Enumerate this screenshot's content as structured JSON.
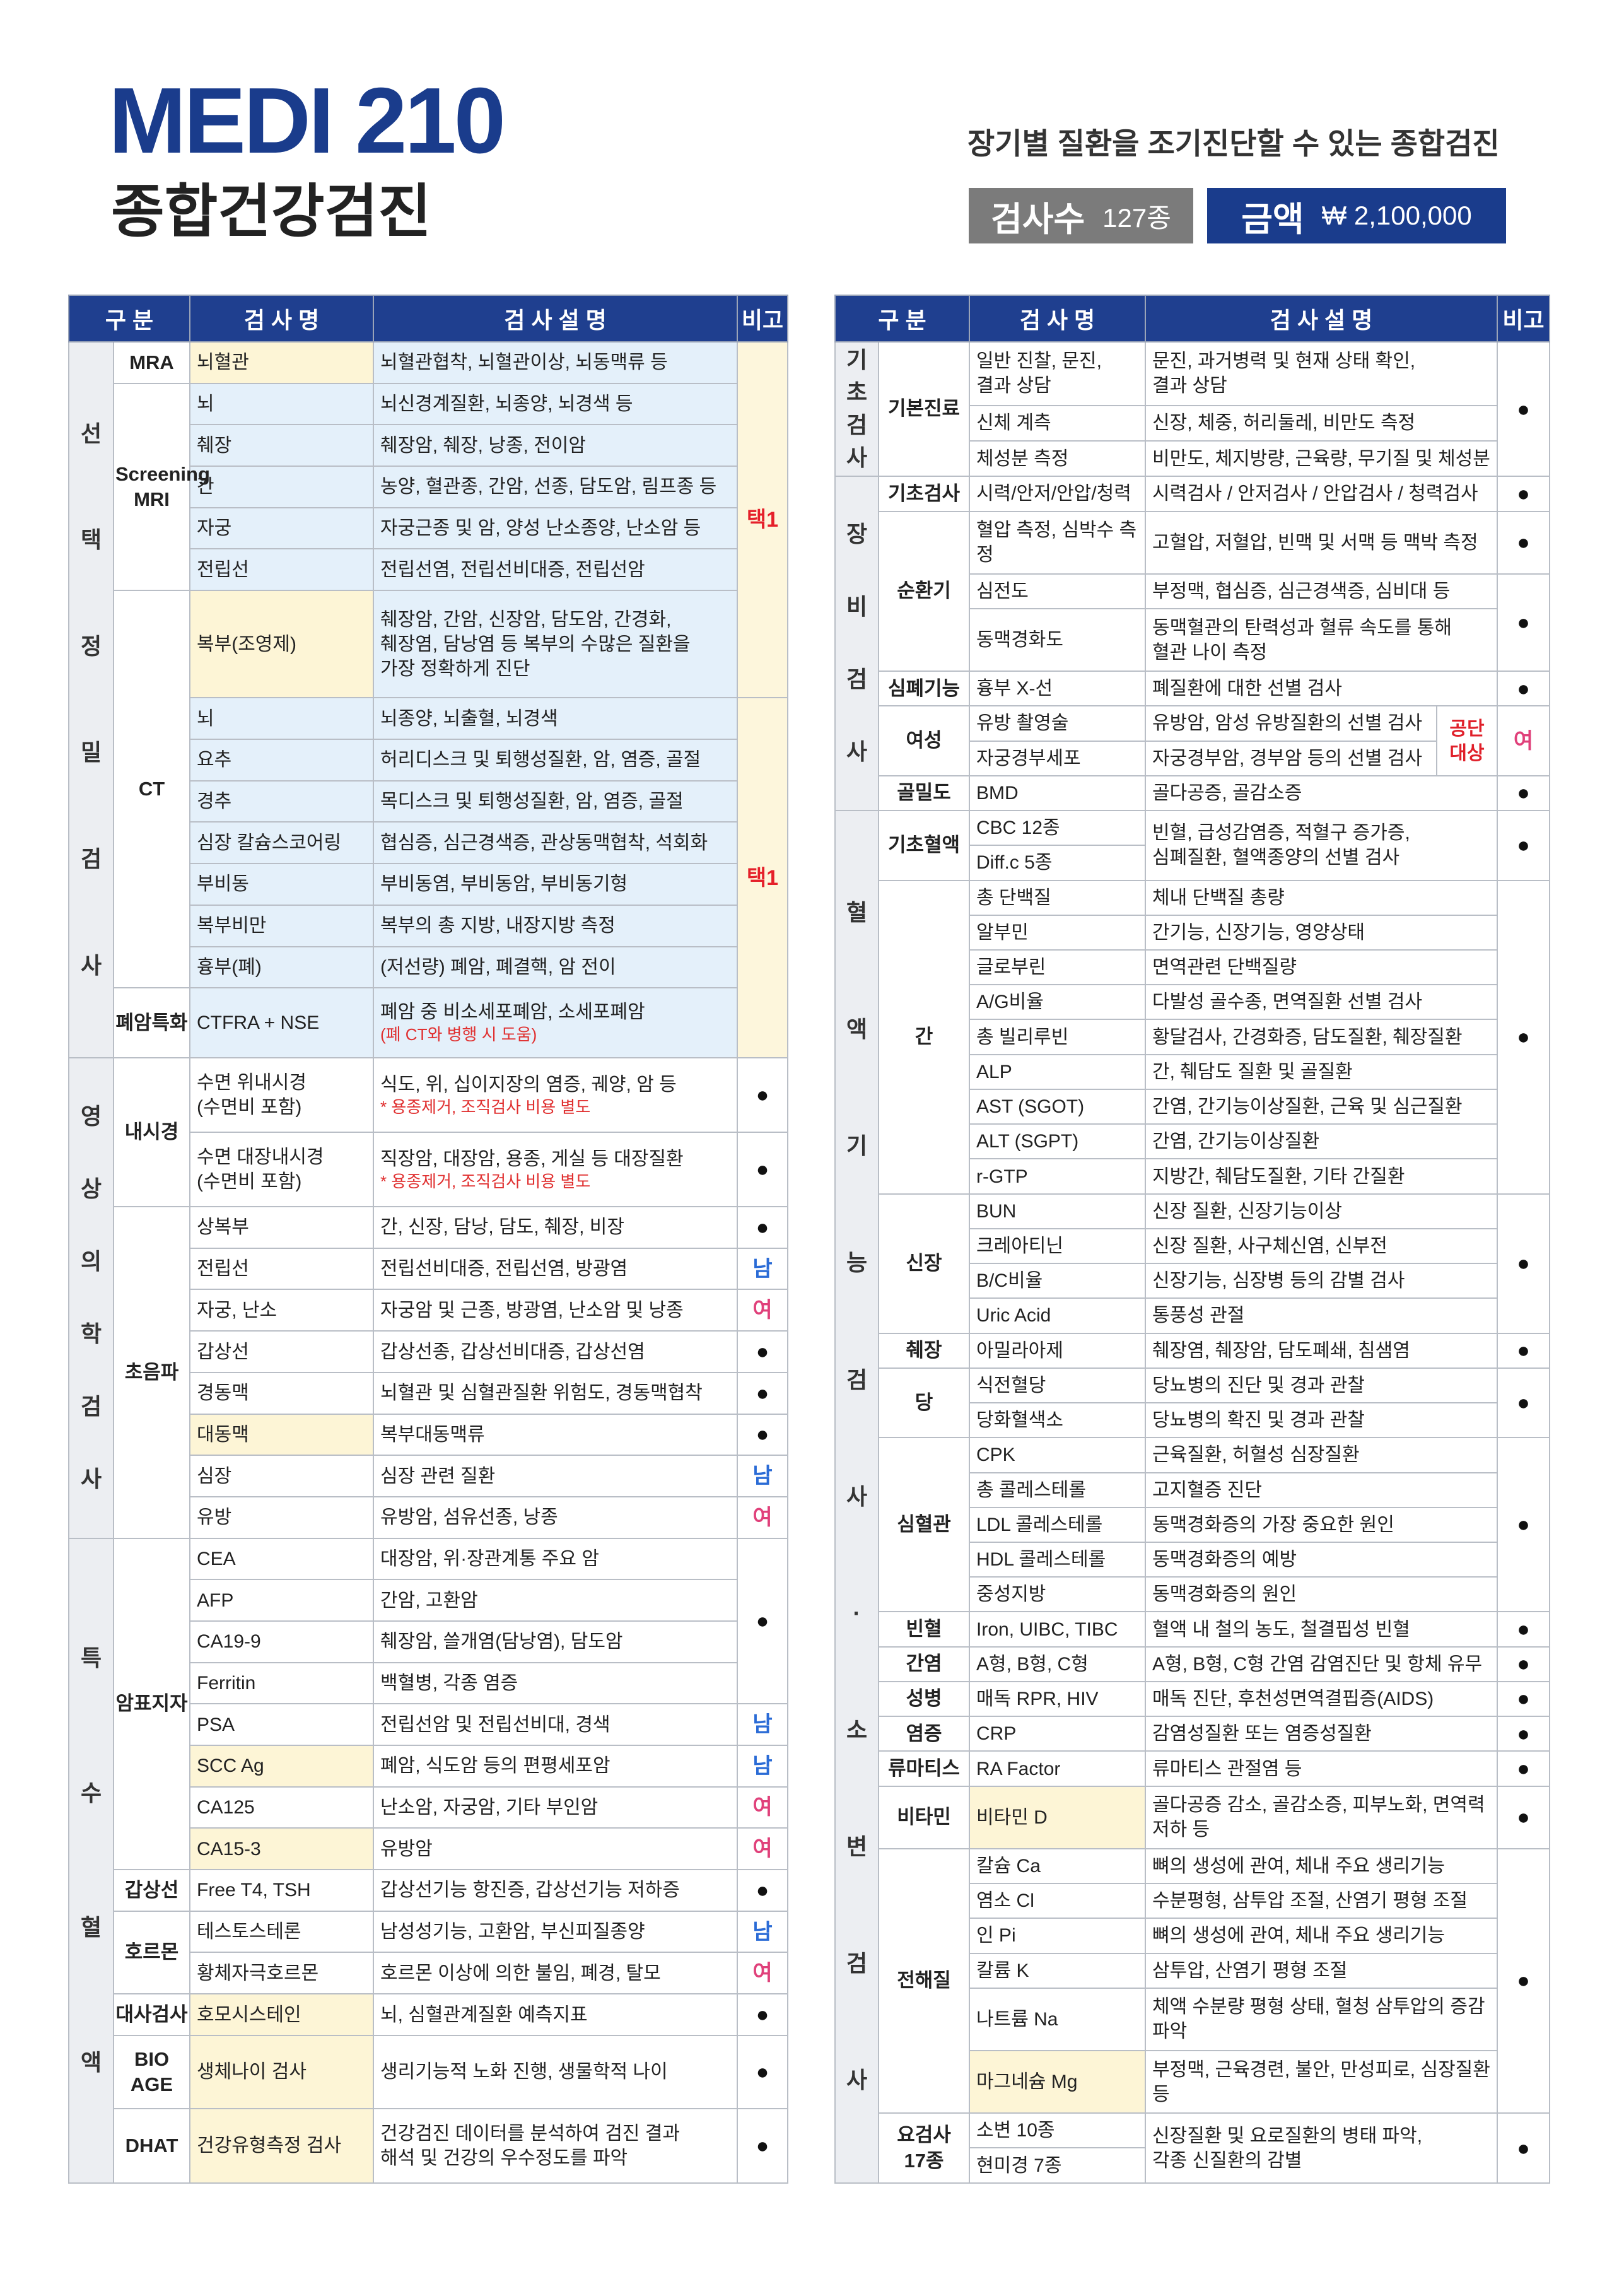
{
  "header": {
    "title": "MEDI 210",
    "subtitle": "종합건강검진",
    "tagline": "장기별 질환을 조기진단할 수 있는 종합검진",
    "count_label": "검사수",
    "count_value": "127종",
    "price_label": "금액",
    "price_value": "₩ 2,100,000"
  },
  "left_table": {
    "headers": [
      "구 분",
      "검 사 명",
      "검 사 설 명",
      "비고"
    ],
    "sections": [
      {
        "label": "선택정밀검사",
        "color": "#e4f0fa",
        "groups": [
          {
            "label": "MRA",
            "items": [
              {
                "name": "뇌혈관",
                "highlight": "#fdf5d6",
                "desc": "뇌혈관협착, 뇌혈관이상, 뇌동맥류 등",
                "note": "택1",
                "note_color": "#e5202a",
                "note_background": "#fdf6dc"
              }
            ]
          },
          {
            "label": "Screening\nMRI",
            "items": [
              {
                "name": "뇌",
                "desc": "뇌신경계질환, 뇌종양, 뇌경색 등"
              },
              {
                "name": "췌장",
                "desc": "췌장암, 췌장, 낭종, 전이암"
              },
              {
                "name": "간",
                "desc": "농양, 혈관종, 간암, 선종, 담도암, 림프종 등"
              },
              {
                "name": "자궁",
                "desc": "자궁근종 및 암, 양성 난소종양, 난소암 등"
              },
              {
                "name": "전립선",
                "desc": "전립선염, 전립선비대증, 전립선암"
              }
            ]
          },
          {
            "label": "CT",
            "items": [
              {
                "name": "복부(조영제)",
                "highlight": "#fdf5d6",
                "desc": "췌장암, 간암, 신장암, 담도암, 간경화,\n췌장염, 담낭염 등 복부의 수많은 질환을\n가장 정확하게 진단"
              },
              {
                "name": "뇌",
                "desc": "뇌종양, 뇌출혈, 뇌경색",
                "note": "택1",
                "note_color": "#e5202a",
                "note_background": "#fdf6dc"
              },
              {
                "name": "요추",
                "desc": "허리디스크 및 퇴행성질환, 암, 염증, 골절"
              },
              {
                "name": "경추",
                "desc": "목디스크 및 퇴행성질환, 암, 염증, 골절"
              },
              {
                "name": "심장 칼슘스코어링",
                "desc": "협심증, 심근경색증, 관상동맥협착, 석회화"
              },
              {
                "name": "부비동",
                "desc": "부비동염, 부비동암, 부비동기형"
              },
              {
                "name": "복부비만",
                "desc": "복부의 총 지방, 내장지방 측정"
              },
              {
                "name": "흉부(폐)",
                "desc": "(저선량) 폐암, 폐결핵, 암 전이"
              }
            ]
          },
          {
            "label": "폐암특화",
            "items": [
              {
                "name": "CTFRA + NSE",
                "desc": "폐암 중 비소세포폐암, 소세포폐암",
                "desc_note": "(폐 CT와 병행 시 도움)"
              }
            ]
          }
        ]
      },
      {
        "label": "영상의학검사",
        "groups": [
          {
            "label": "내시경",
            "items": [
              {
                "name": "수면 위내시경\n(수면비 포함)",
                "desc": "식도, 위, 십이지장의 염증, 궤양, 암 등",
                "desc_note": "* 용종제거, 조직검사 비용 별도",
                "note": "●"
              },
              {
                "name": "수면 대장내시경\n(수면비 포함)",
                "desc": "직장암, 대장암, 용종, 게실 등 대장질환",
                "desc_note": "* 용종제거, 조직검사 비용 별도",
                "note": "●"
              }
            ]
          },
          {
            "label": "초음파",
            "items": [
              {
                "name": "상복부",
                "desc": "간, 신장, 담낭, 담도, 췌장, 비장",
                "note": "●"
              },
              {
                "name": "전립선",
                "desc": "전립선비대증, 전립선염, 방광염",
                "note": "남",
                "note_color": "#2a6bd6"
              },
              {
                "name": "자궁, 난소",
                "desc": "자궁암 및 근종, 방광염, 난소암 및 낭종",
                "note": "여",
                "note_color": "#e0407a"
              },
              {
                "name": "갑상선",
                "desc": "갑상선종, 갑상선비대증, 갑상선염",
                "note": "●"
              },
              {
                "name": "경동맥",
                "desc": "뇌혈관 및 심혈관질환 위험도, 경동맥협착",
                "note": "●"
              },
              {
                "name": "대동맥",
                "highlight": "#fdf5d6",
                "desc": "복부대동맥류",
                "note": "●"
              },
              {
                "name": "심장",
                "desc": "심장 관련 질환",
                "note": "남",
                "note_color": "#2a6bd6"
              },
              {
                "name": "유방",
                "desc": "유방암, 섬유선종, 낭종",
                "note": "여",
                "note_color": "#e0407a"
              }
            ]
          }
        ]
      },
      {
        "label": "특수혈액",
        "groups": [
          {
            "label": "암표지자",
            "items": [
              {
                "name": "CEA",
                "desc": "대장암, 위·장관계통 주요 암",
                "note": "●"
              },
              {
                "name": "AFP",
                "desc": "간암, 고환암"
              },
              {
                "name": "CA19-9",
                "desc": "췌장암, 쓸개염(담낭염), 담도암"
              },
              {
                "name": "Ferritin",
                "desc": "백혈병, 각종 염증"
              },
              {
                "name": "PSA",
                "desc": "전립선암 및 전립선비대, 경색",
                "note": "남",
                "note_color": "#2a6bd6"
              },
              {
                "name": "SCC Ag",
                "highlight": "#fdf5d6",
                "desc": "폐암, 식도암 등의 편평세포암",
                "note": "남",
                "note_color": "#2a6bd6"
              },
              {
                "name": "CA125",
                "desc": "난소암, 자궁암, 기타 부인암",
                "note": "여",
                "note_color": "#e0407a"
              },
              {
                "name": "CA15-3",
                "highlight": "#fdf5d6",
                "desc": "유방암",
                "note": "여",
                "note_color": "#e0407a"
              }
            ]
          },
          {
            "label": "갑상선",
            "items": [
              {
                "name": "Free T4, TSH",
                "desc": "갑상선기능 항진증, 갑상선기능 저하증",
                "note": "●"
              }
            ]
          },
          {
            "label": "호르몬",
            "items": [
              {
                "name": "테스토스테론",
                "desc": "남성성기능, 고환암, 부신피질종양",
                "note": "남",
                "note_color": "#2a6bd6"
              },
              {
                "name": "황체자극호르몬",
                "desc": "호르몬 이상에 의한 불임, 폐경, 탈모",
                "note": "여",
                "note_color": "#e0407a"
              }
            ]
          },
          {
            "label": "대사검사",
            "items": [
              {
                "name": "호모시스테인",
                "highlight": "#fdf5d6",
                "desc": "뇌, 심혈관계질환 예측지표",
                "note": "●"
              }
            ]
          },
          {
            "label": "BIO AGE",
            "items": [
              {
                "name": "생체나이 검사",
                "highlight": "#fdf5d6",
                "desc": "생리기능적 노화 진행, 생물학적 나이",
                "note": "●"
              }
            ]
          },
          {
            "label": "DHAT",
            "items": [
              {
                "name": "건강유형측정 검사",
                "highlight": "#fdf5d6",
                "desc": "건강검진 데이터를 분석하여 검진 결과\n해석 및 건강의 우수정도를 파악",
                "note": "●"
              }
            ]
          }
        ]
      }
    ]
  },
  "right_table": {
    "headers": [
      "구 분",
      "검 사 명",
      "검 사 설 명",
      "비고"
    ],
    "sections": [
      {
        "label": "기초검사",
        "groups": [
          {
            "label": "기본진료",
            "items": [
              {
                "name": "일반 진찰, 문진,\n결과 상담",
                "desc": "문진, 과거병력 및 현재 상태 확인,\n결과 상담",
                "note": "●"
              },
              {
                "name": "신체 계측",
                "desc": "신장, 체중, 허리둘레, 비만도 측정"
              },
              {
                "name": "체성분 측정",
                "desc": "비만도, 체지방량, 근육량, 무기질 및 체성분"
              }
            ]
          }
        ]
      },
      {
        "label": "장비검사",
        "groups": [
          {
            "label": "기초검사",
            "items": [
              {
                "name": "시력/안저/안압/청력",
                "desc": "시력검사 / 안저검사 / 안압검사 / 청력검사",
                "note": "●"
              }
            ]
          },
          {
            "label": "순환기",
            "items": [
              {
                "name": "혈압 측정, 심박수 측정",
                "desc": "고혈압, 저혈압, 빈맥 및 서맥 등 맥박 측정",
                "note": "●"
              },
              {
                "name": "심전도",
                "desc": "부정맥, 협심증, 심근경색증, 심비대 등",
                "note": "●"
              },
              {
                "name": "동맥경화도",
                "desc": "동맥혈관의 탄력성과 혈류 속도를 통해\n혈관 나이 측정"
              }
            ]
          },
          {
            "label": "심폐기능",
            "items": [
              {
                "name": "흉부 X-선",
                "desc": "폐질환에 대한 선별 검사",
                "note": "●"
              }
            ]
          },
          {
            "label": "여성",
            "tag": "공단\n대상",
            "items": [
              {
                "name": "유방 촬영술",
                "desc": "유방암, 암성 유방질환의 선별 검사",
                "note": "여",
                "note_color": "#e0407a"
              },
              {
                "name": "자궁경부세포",
                "desc": "자궁경부암, 경부암 등의 선별 검사"
              }
            ]
          },
          {
            "label": "골밀도",
            "items": [
              {
                "name": "BMD",
                "desc": "골다공증, 골감소증",
                "note": "●"
              }
            ]
          }
        ]
      },
      {
        "label": "혈액기능검사·소변검사",
        "groups": [
          {
            "label": "기초혈액",
            "items": [
              {
                "name": "CBC 12종",
                "desc": "빈혈, 급성감염증, 적혈구 증가증,\n심폐질환, 혈액종양의 선별 검사",
                "note": "●"
              },
              {
                "name": "Diff.c 5종"
              }
            ]
          },
          {
            "label": "간",
            "items": [
              {
                "name": "총 단백질",
                "desc": "체내 단백질 총량",
                "note": "●"
              },
              {
                "name": "알부민",
                "desc": "간기능, 신장기능, 영양상태"
              },
              {
                "name": "글로부린",
                "desc": "면역관련 단백질량"
              },
              {
                "name": "A/G비율",
                "desc": "다발성 골수종, 면역질환 선별 검사"
              },
              {
                "name": "총 빌리루빈",
                "desc": "황달검사, 간경화증, 담도질환, 췌장질환"
              },
              {
                "name": "ALP",
                "desc": "간, 췌담도 질환 및 골질환"
              },
              {
                "name": "AST (SGOT)",
                "desc": "간염, 간기능이상질환, 근육 및 심근질환"
              },
              {
                "name": "ALT (SGPT)",
                "desc": "간염, 간기능이상질환"
              },
              {
                "name": "r-GTP",
                "desc": "지방간, 췌담도질환, 기타 간질환"
              }
            ]
          },
          {
            "label": "신장",
            "items": [
              {
                "name": "BUN",
                "desc": "신장 질환, 신장기능이상",
                "note": "●"
              },
              {
                "name": "크레아티닌",
                "desc": "신장 질환, 사구체신염, 신부전"
              },
              {
                "name": "B/C비율",
                "desc": "신장기능, 심장병 등의 감별 검사"
              },
              {
                "name": "Uric Acid",
                "desc": "통풍성 관절"
              }
            ]
          },
          {
            "label": "췌장",
            "items": [
              {
                "name": "아밀라아제",
                "desc": "췌장염, 췌장암, 담도폐쇄, 침샘염",
                "note": "●"
              }
            ]
          },
          {
            "label": "당",
            "items": [
              {
                "name": "식전혈당",
                "desc": "당뇨병의 진단 및 경과 관찰",
                "note": "●"
              },
              {
                "name": "당화혈색소",
                "desc": "당뇨병의 확진 및 경과 관찰"
              }
            ]
          },
          {
            "label": "심혈관",
            "items": [
              {
                "name": "CPK",
                "desc": "근육질환, 허혈성 심장질환",
                "note": "●"
              },
              {
                "name": "총 콜레스테롤",
                "desc": "고지혈증 진단"
              },
              {
                "name": "LDL 콜레스테롤",
                "desc": "동맥경화증의 가장 중요한 원인"
              },
              {
                "name": "HDL 콜레스테롤",
                "desc": "동맥경화증의 예방"
              },
              {
                "name": "중성지방",
                "desc": "동맥경화증의 원인"
              }
            ]
          },
          {
            "label": "빈혈",
            "items": [
              {
                "name": "Iron, UIBC, TIBC",
                "desc": "혈액 내 철의 농도, 철결핍성 빈혈",
                "note": "●"
              }
            ]
          },
          {
            "label": "간염",
            "items": [
              {
                "name": "A형, B형, C형",
                "desc": "A형, B형, C형 간염 감염진단 및 항체 유무",
                "note": "●"
              }
            ]
          },
          {
            "label": "성병",
            "items": [
              {
                "name": "매독 RPR, HIV",
                "desc": "매독 진단, 후천성면역결핍증(AIDS)",
                "note": "●"
              }
            ]
          },
          {
            "label": "염증",
            "items": [
              {
                "name": "CRP",
                "desc": "감염성질환 또는 염증성질환",
                "note": "●"
              }
            ]
          },
          {
            "label": "류마티스",
            "items": [
              {
                "name": "RA Factor",
                "desc": "류마티스 관절염 등",
                "note": "●"
              }
            ]
          },
          {
            "label": "비타민",
            "items": [
              {
                "name": "비타민 D",
                "highlight": "#fdf5d6",
                "desc": "골다공증 감소, 골감소증, 피부노화, 면역력저하 등",
                "note": "●"
              }
            ]
          },
          {
            "label": "전해질",
            "items": [
              {
                "name": "칼슘 Ca",
                "desc": "뼈의 생성에 관여, 체내 주요 생리기능",
                "note": "●"
              },
              {
                "name": "염소 Cl",
                "desc": "수분평형, 삼투압 조절, 산염기 평형 조절"
              },
              {
                "name": "인 Pi",
                "desc": "뼈의 생성에 관여, 체내 주요 생리기능"
              },
              {
                "name": "칼륨 K",
                "desc": "삼투압, 산염기 평형 조절"
              },
              {
                "name": "나트륨 Na",
                "desc": "체액 수분량 평형 상태, 혈청 삼투압의 증감 파악"
              },
              {
                "name": "마그네슘 Mg",
                "highlight": "#fdf5d6",
                "desc": "부정맥, 근육경련, 불안, 만성피로, 심장질환 등"
              }
            ]
          },
          {
            "label": "요검사\n17종",
            "items": [
              {
                "name": "소변 10종",
                "desc": "신장질환 및 요로질환의 병태 파악,\n각종 신질환의 감별",
                "note": "●"
              },
              {
                "name": "현미경 7종"
              }
            ]
          }
        ]
      }
    ]
  }
}
